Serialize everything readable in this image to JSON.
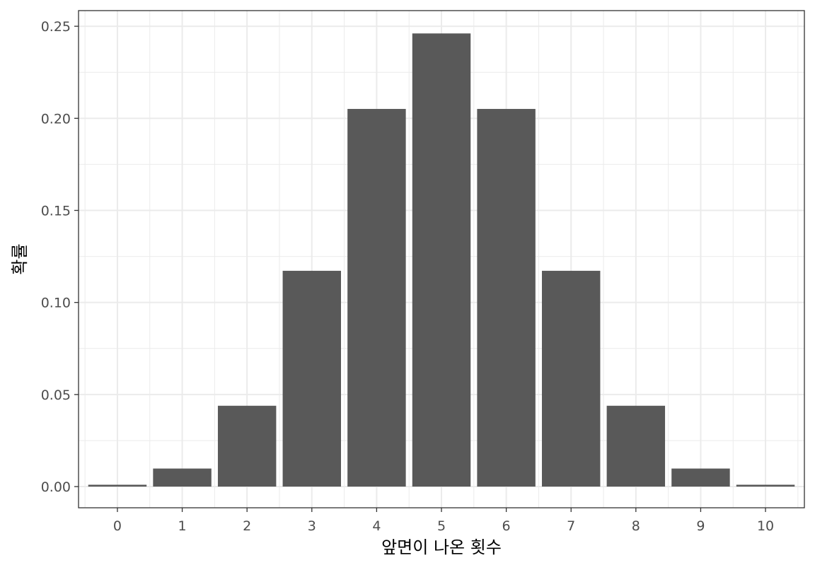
{
  "chart_data": {
    "type": "bar",
    "categories": [
      "0",
      "1",
      "2",
      "3",
      "4",
      "5",
      "6",
      "7",
      "8",
      "9",
      "10"
    ],
    "values": [
      0.001,
      0.0098,
      0.0439,
      0.1172,
      0.2051,
      0.2461,
      0.2051,
      0.1172,
      0.0439,
      0.0098,
      0.001
    ],
    "title": "",
    "xlabel": "앞면이 나온 횟수",
    "ylabel": "확률",
    "ylim": [
      -0.0115,
      0.2585
    ],
    "yticks": [
      0.0,
      0.05,
      0.1,
      0.15,
      0.2,
      0.25
    ],
    "ytick_labels": [
      "0.00",
      "0.05",
      "0.10",
      "0.15",
      "0.20",
      "0.25"
    ],
    "grid": true,
    "bar_color": "#595959",
    "grid_color": "#ebebeb",
    "panel_border_color": "#333333"
  }
}
